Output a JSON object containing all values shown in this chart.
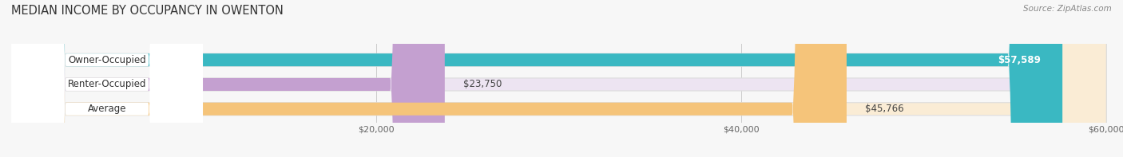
{
  "title": "MEDIAN INCOME BY OCCUPANCY IN OWENTON",
  "source": "Source: ZipAtlas.com",
  "categories": [
    "Owner-Occupied",
    "Renter-Occupied",
    "Average"
  ],
  "values": [
    57589,
    23750,
    45766
  ],
  "bar_colors": [
    "#3ab8c2",
    "#c4a0d0",
    "#f5c47a"
  ],
  "bg_colors": [
    "#dff0f2",
    "#ede4f2",
    "#faecd5"
  ],
  "value_labels": [
    "$57,589",
    "$23,750",
    "$45,766"
  ],
  "xmin": 0,
  "xmax": 60000,
  "xticks": [
    20000,
    40000,
    60000
  ],
  "xtick_labels": [
    "$20,000",
    "$40,000",
    "$60,000"
  ],
  "background_color": "#f7f7f7",
  "title_fontsize": 10.5,
  "label_fontsize": 8.5,
  "value_fontsize": 8.5
}
